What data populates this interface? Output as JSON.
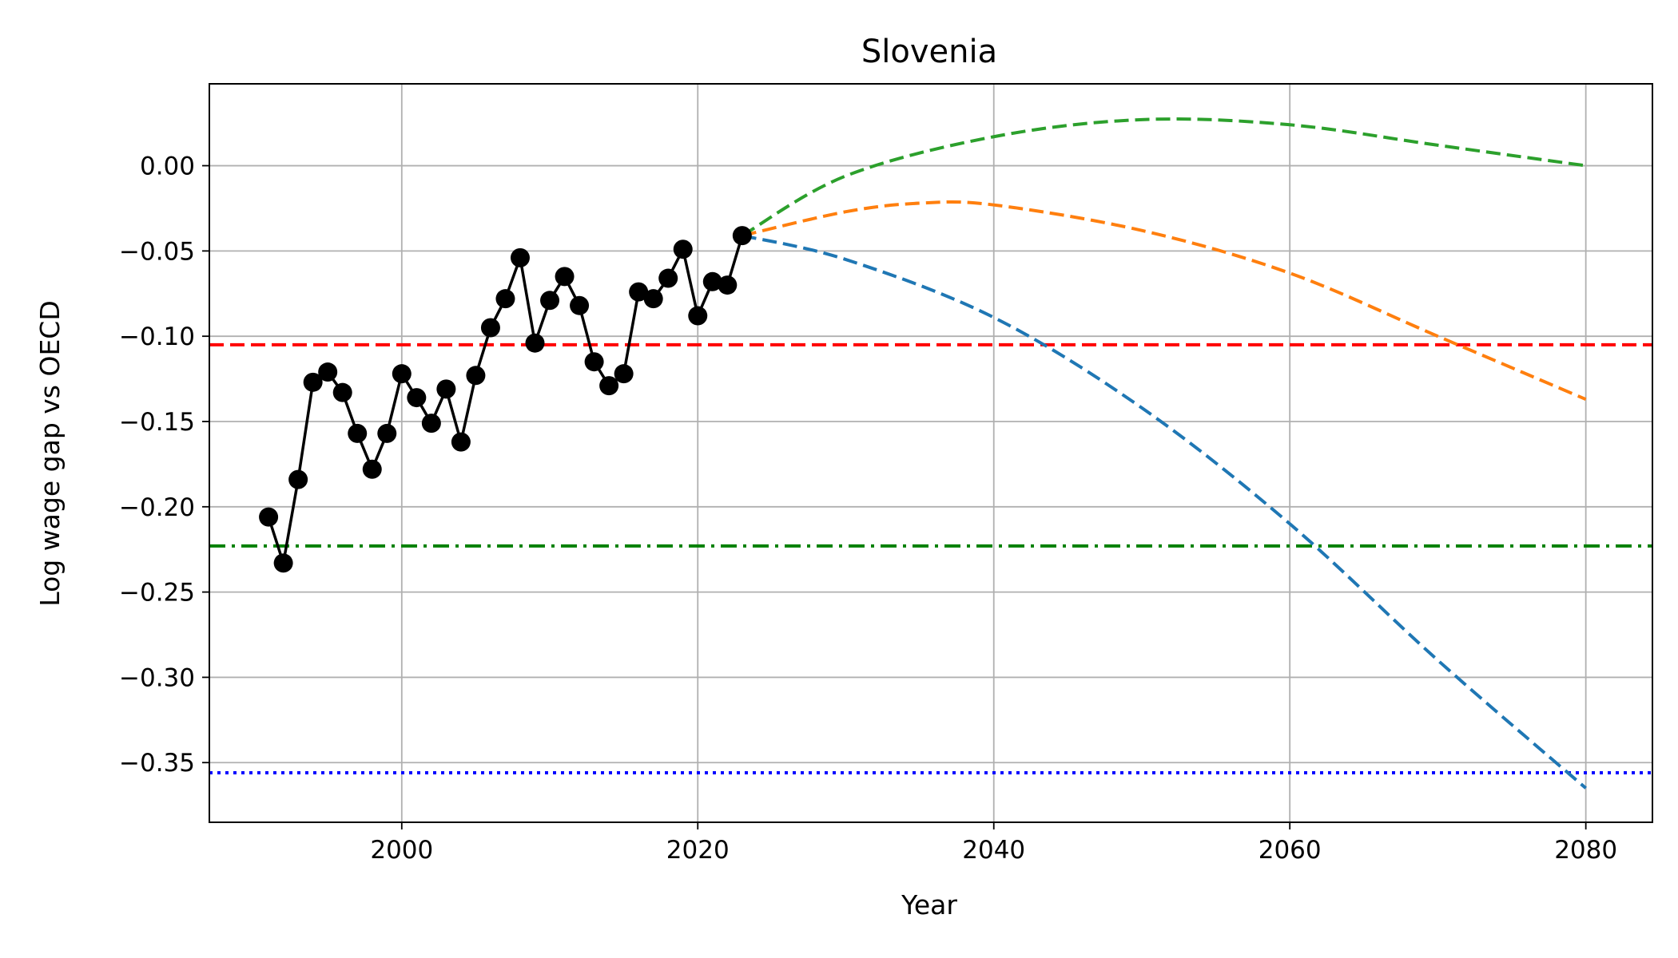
{
  "chart_data": {
    "type": "line",
    "title": "Slovenia",
    "xlabel": "Year",
    "ylabel": "Log wage gap vs OECD",
    "xlim": [
      1987,
      2084.5
    ],
    "ylim": [
      -0.385,
      0.048
    ],
    "xticks": [
      2000,
      2020,
      2040,
      2060,
      2080
    ],
    "yticks": [
      0.0,
      -0.05,
      -0.1,
      -0.15,
      -0.2,
      -0.25,
      -0.3,
      -0.35
    ],
    "xtick_labels": [
      "2000",
      "2020",
      "2040",
      "2060",
      "2080"
    ],
    "ytick_labels": [
      "0.00",
      "−0.05",
      "−0.10",
      "−0.15",
      "−0.20",
      "−0.25",
      "−0.30",
      "−0.35"
    ],
    "grid": true,
    "legend": "none",
    "series": [
      {
        "style": "solid-markers",
        "color": "#000000",
        "x": [
          1991,
          1992,
          1993,
          1994,
          1995,
          1996,
          1997,
          1998,
          1999,
          2000,
          2001,
          2002,
          2003,
          2004,
          2005,
          2006,
          2007,
          2008,
          2009,
          2010,
          2011,
          2012,
          2013,
          2014,
          2015,
          2016,
          2017,
          2018,
          2019,
          2020,
          2021,
          2022,
          2023
        ],
        "y": [
          -0.206,
          -0.233,
          -0.184,
          -0.127,
          -0.121,
          -0.133,
          -0.157,
          -0.178,
          -0.157,
          -0.122,
          -0.136,
          -0.151,
          -0.131,
          -0.162,
          -0.123,
          -0.095,
          -0.078,
          -0.054,
          -0.104,
          -0.079,
          -0.065,
          -0.082,
          -0.115,
          -0.129,
          -0.122,
          -0.074,
          -0.078,
          -0.066,
          -0.049,
          -0.088,
          -0.068,
          -0.07,
          -0.041
        ]
      },
      {
        "style": "dashed",
        "color": "#1f77b4",
        "x": [
          2023,
          2030,
          2040,
          2050,
          2060,
          2070,
          2080
        ],
        "y": [
          -0.041,
          -0.055,
          -0.089,
          -0.142,
          -0.21,
          -0.29,
          -0.365
        ]
      },
      {
        "style": "dashed",
        "color": "#ff7f0e",
        "x": [
          2023,
          2030,
          2035,
          2040,
          2050,
          2060,
          2070,
          2080
        ],
        "y": [
          -0.041,
          -0.027,
          -0.022,
          -0.023,
          -0.038,
          -0.063,
          -0.1,
          -0.137
        ]
      },
      {
        "style": "dashed",
        "color": "#2ca02c",
        "x": [
          2023,
          2030,
          2040,
          2050,
          2060,
          2070,
          2080
        ],
        "y": [
          -0.041,
          -0.006,
          0.017,
          0.027,
          0.024,
          0.012,
          0.0
        ]
      }
    ],
    "hlines": [
      {
        "y": -0.105,
        "style": "dashed",
        "color": "#ff0000"
      },
      {
        "y": -0.223,
        "style": "dashdot",
        "color": "#008000"
      },
      {
        "y": -0.356,
        "style": "dotted",
        "color": "#0000ff"
      }
    ]
  }
}
